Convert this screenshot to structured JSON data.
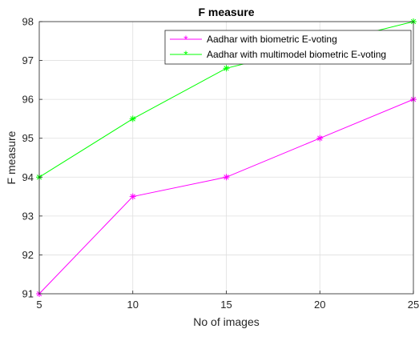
{
  "chart_data": {
    "type": "line",
    "title": "F measure",
    "xlabel": "No of images",
    "ylabel": "F measure",
    "x": [
      5,
      10,
      15,
      20,
      25
    ],
    "xlim": [
      5,
      25
    ],
    "ylim": [
      91,
      98
    ],
    "xticks": [
      "5",
      "10",
      "15",
      "20",
      "25"
    ],
    "yticks": [
      "91",
      "92",
      "93",
      "94",
      "95",
      "96",
      "97",
      "98"
    ],
    "grid": true,
    "legend_position": "top-right",
    "series": [
      {
        "name": "Aadhar with biometric E-voting",
        "color": "#ff00ff",
        "marker": "asterisk",
        "values": [
          91.0,
          93.5,
          94.0,
          95.0,
          96.0
        ]
      },
      {
        "name": "Aadhar with multimodel biometric E-voting",
        "color": "#00ff00",
        "marker": "asterisk",
        "values": [
          94.0,
          95.5,
          96.8,
          97.4,
          98.0
        ]
      }
    ]
  }
}
